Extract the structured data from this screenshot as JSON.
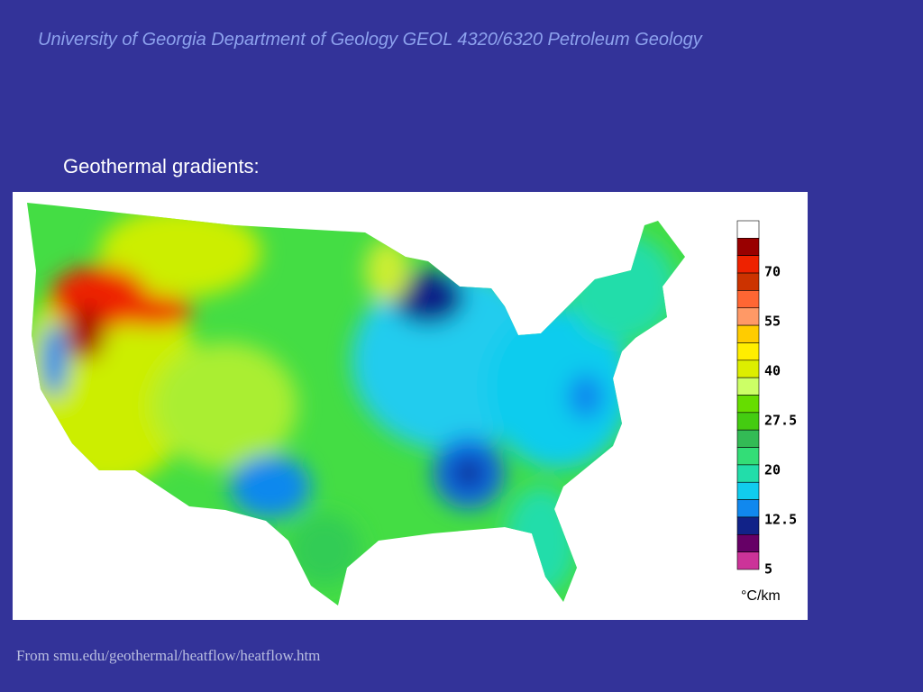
{
  "header": {
    "title": "University of Georgia Department of Geology GEOL 4320/6320 Petroleum Geology"
  },
  "heading": "Geothermal gradients:",
  "map": {
    "legend": {
      "colors": [
        "#ffffff",
        "#990000",
        "#ee2200",
        "#cc3300",
        "#ff6633",
        "#ff9966",
        "#ffcc00",
        "#ffee00",
        "#ddee00",
        "#ccff66",
        "#66dd00",
        "#44cc11",
        "#33bb55",
        "#33dd77",
        "#22ddaa",
        "#11ccee",
        "#1188ee",
        "#112288",
        "#660066",
        "#cc3399"
      ],
      "labels": [
        "70",
        "55",
        "40",
        "27.5",
        "20",
        "12.5",
        "5"
      ],
      "unit": "°C/km"
    }
  },
  "footer": "From smu.edu/geothermal/heatflow/heatflow.htm"
}
